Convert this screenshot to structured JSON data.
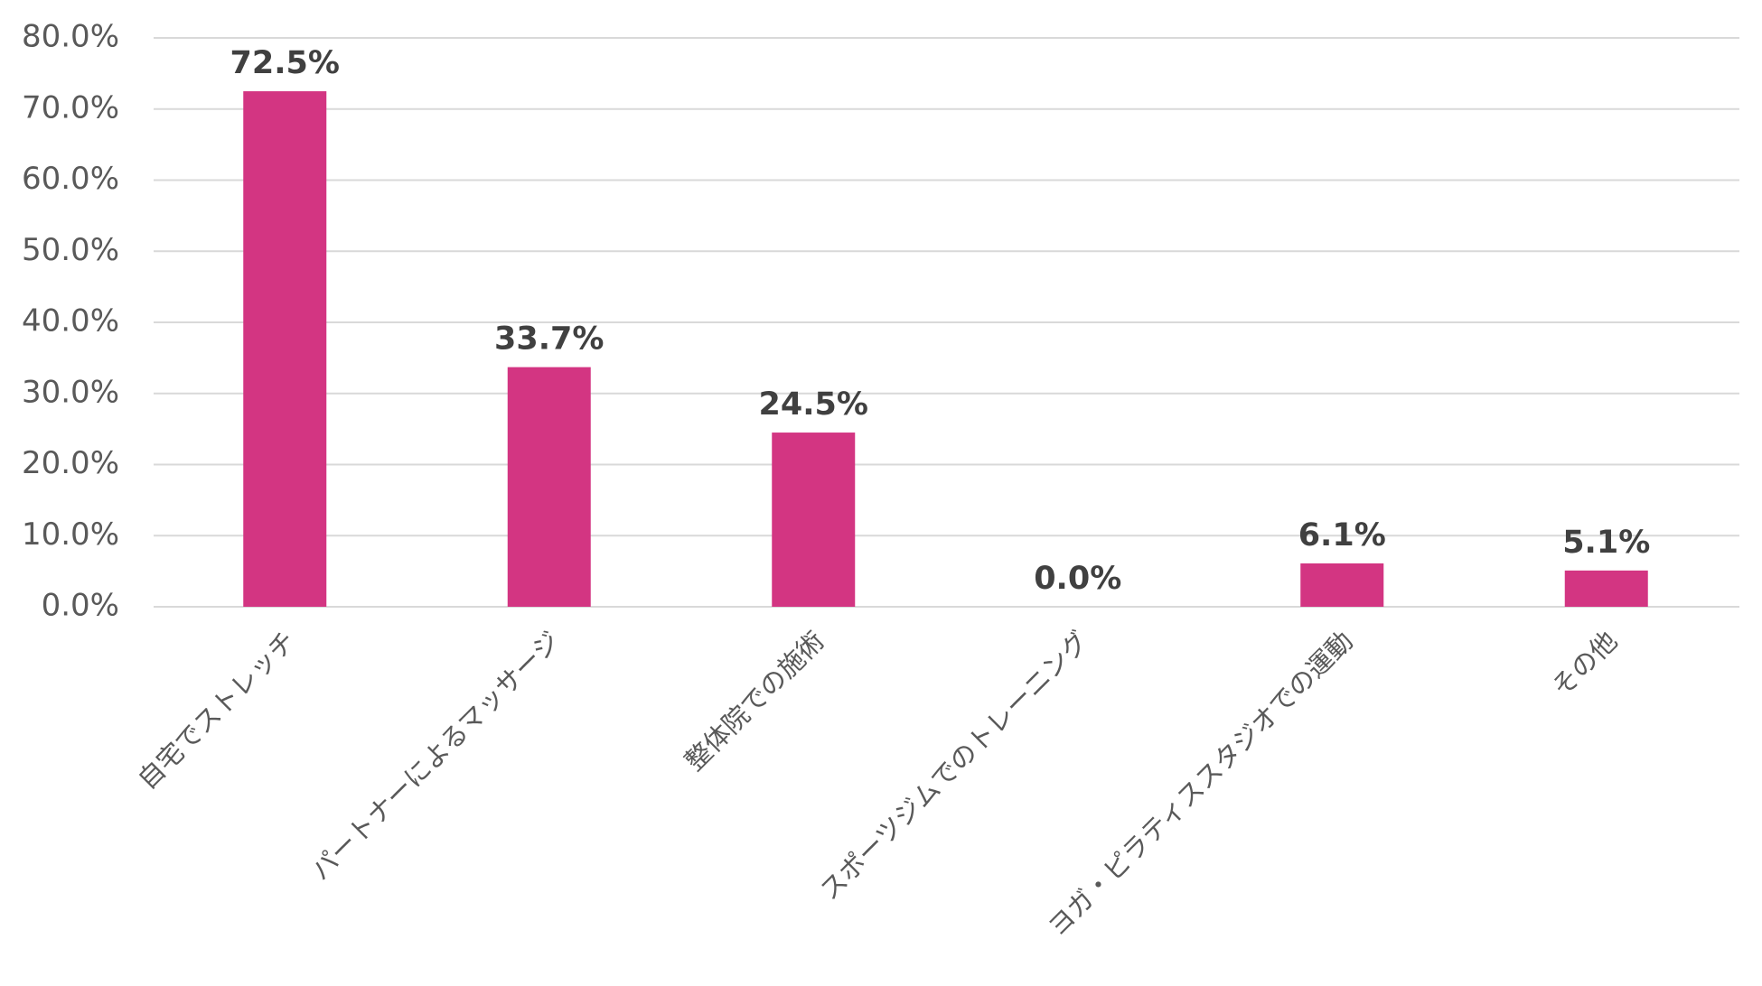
{
  "chart_data": {
    "type": "bar",
    "title": "",
    "xlabel": "",
    "ylabel": "",
    "categories": [
      "自宅でストレッチ",
      "パートナーによるマッサージ",
      "整体院での施術",
      "スポーツジムでのトレーニング",
      "ヨガ・ピラティススタジオでの運動",
      "その他"
    ],
    "values": [
      72.5,
      33.7,
      24.5,
      0.0,
      6.1,
      5.1
    ],
    "data_labels": [
      "72.5%",
      "33.7%",
      "24.5%",
      "0.0%",
      "6.1%",
      "5.1%"
    ],
    "ylim": [
      0,
      80
    ],
    "yticks": [
      0,
      10,
      20,
      30,
      40,
      50,
      60,
      70,
      80
    ],
    "ytick_labels": [
      "0.0%",
      "10.0%",
      "20.0%",
      "30.0%",
      "40.0%",
      "50.0%",
      "60.0%",
      "70.0%",
      "80.0%"
    ],
    "grid": true,
    "legend": "none",
    "bar_color": "#d33582"
  }
}
